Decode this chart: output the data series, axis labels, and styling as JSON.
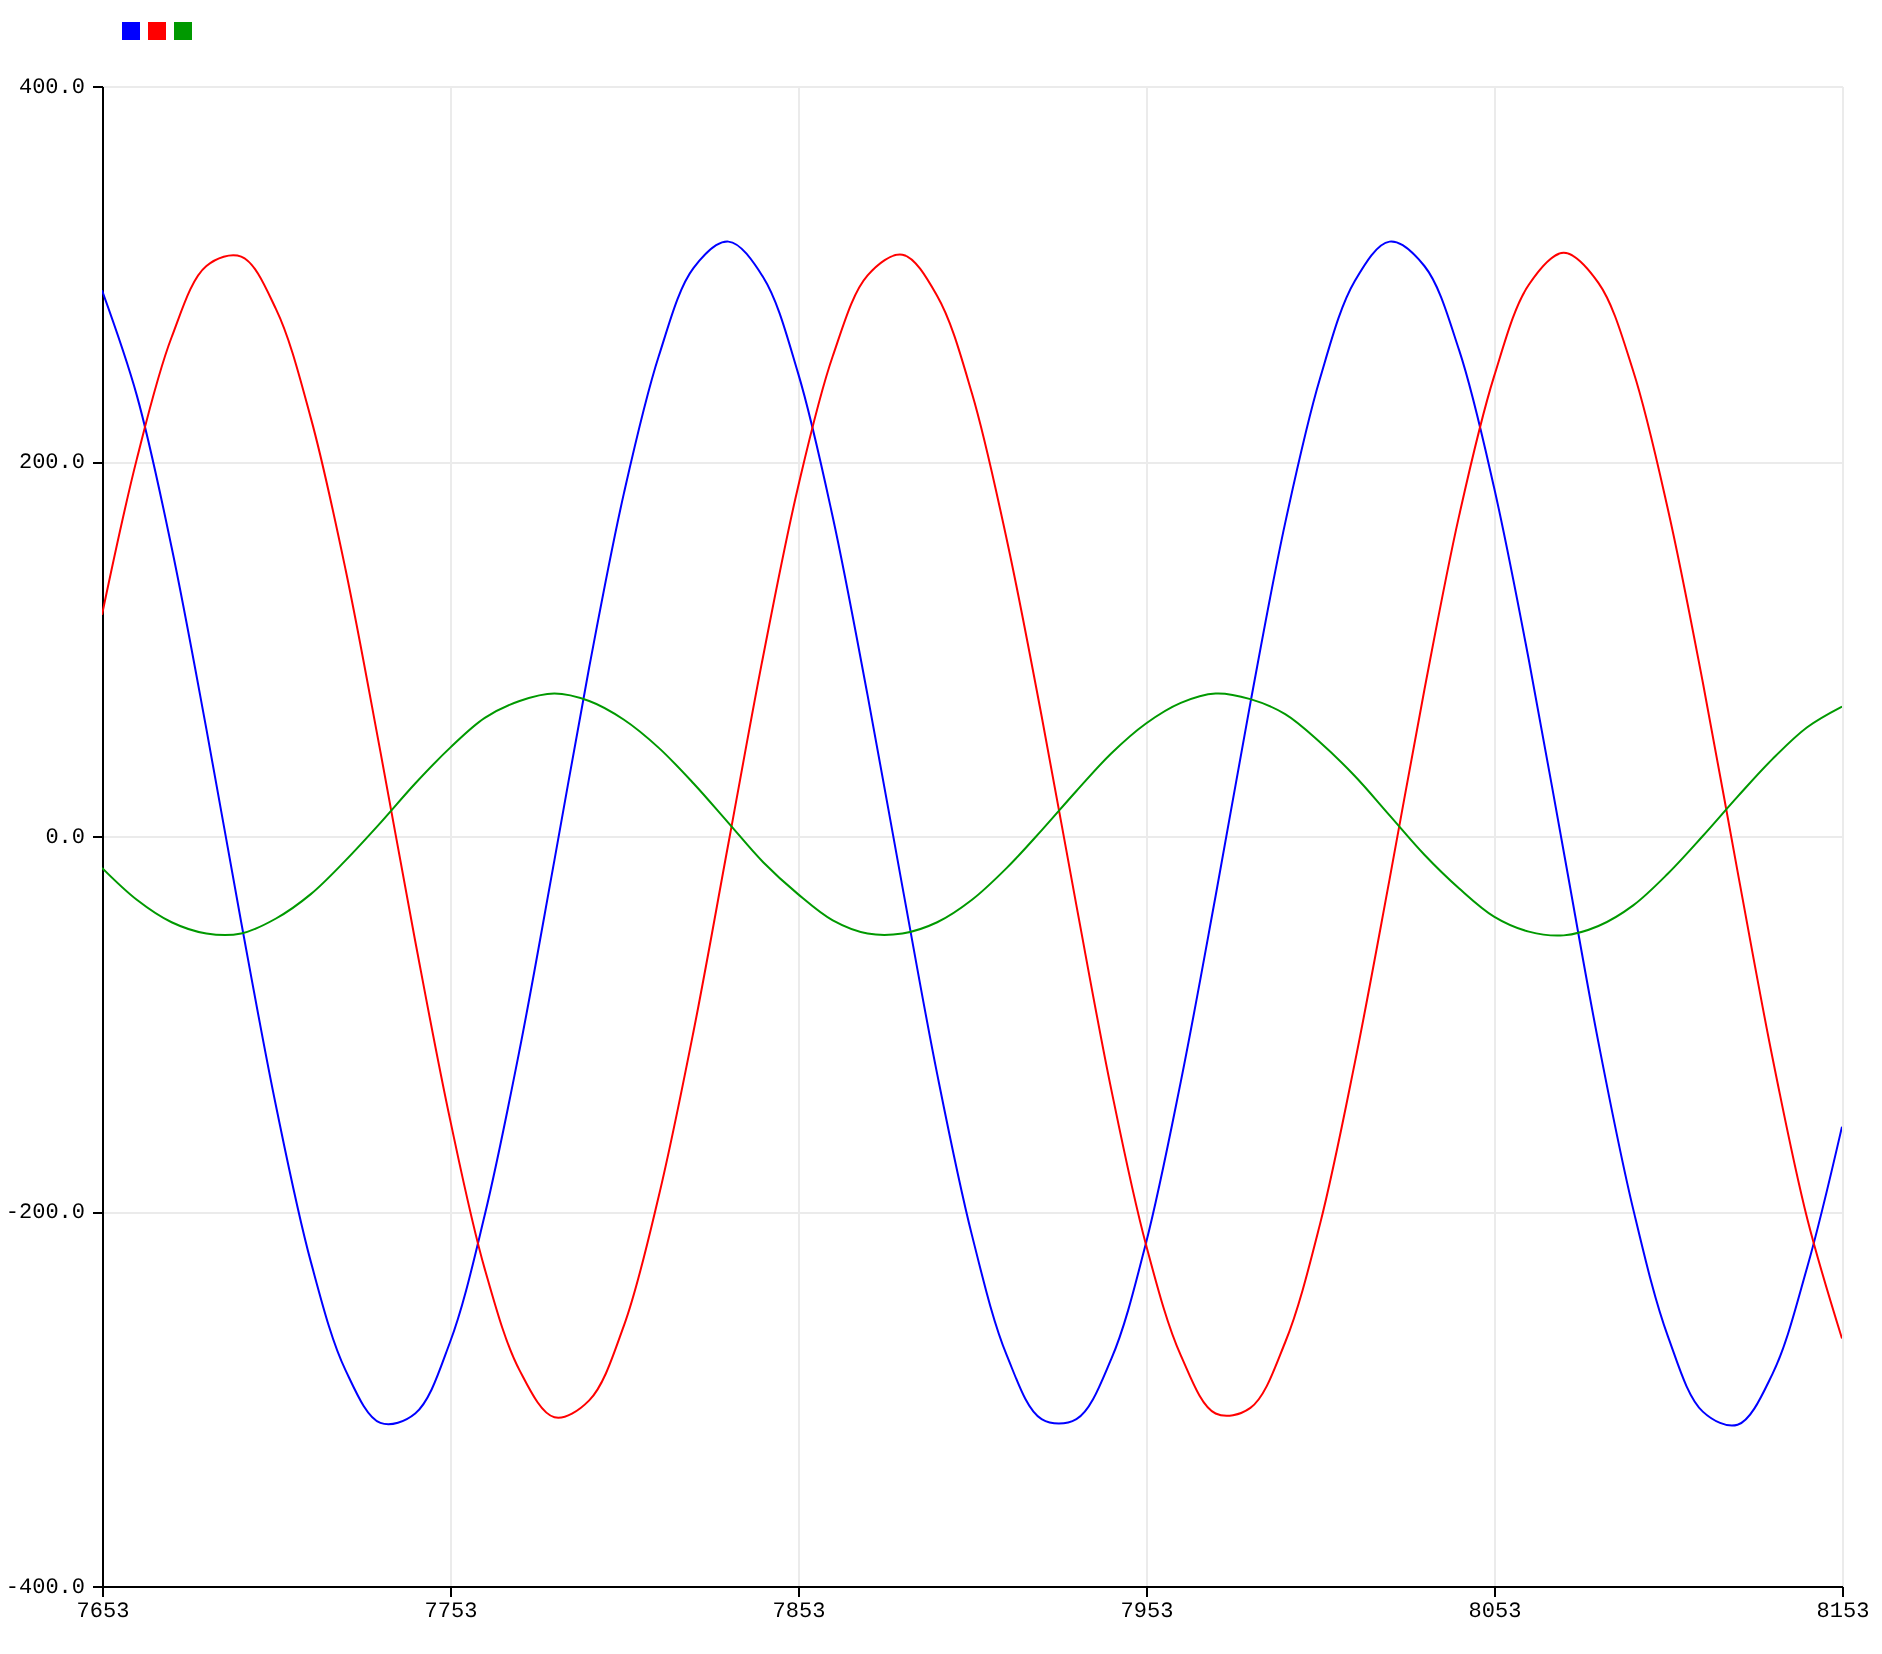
{
  "chart_data": {
    "type": "line",
    "x": [
      7653,
      7663,
      7673,
      7683,
      7693,
      7703,
      7713,
      7723,
      7733,
      7743,
      7753,
      7763,
      7773,
      7783,
      7793,
      7803,
      7813,
      7823,
      7833,
      7843,
      7853,
      7863,
      7873,
      7883,
      7893,
      7903,
      7913,
      7923,
      7933,
      7943,
      7953,
      7963,
      7973,
      7983,
      7993,
      8003,
      8013,
      8023,
      8033,
      8043,
      8053,
      8063,
      8073,
      8083,
      8093,
      8103,
      8113,
      8123,
      8133,
      8143,
      8153
    ],
    "series": [
      {
        "color": "#0000ff",
        "values": [
          291,
          235,
          154,
          57,
          -46,
          -144,
          -227,
          -285,
          -313,
          -308,
          -270,
          -202,
          -114,
          -13,
          90,
          183,
          256,
          303,
          317,
          298,
          247,
          170,
          75,
          -27,
          -127,
          -213,
          -277,
          -311,
          -311,
          -279,
          -217,
          -131,
          -32,
          71,
          167,
          244,
          296,
          317,
          304,
          259,
          186,
          94,
          -8,
          -110,
          -199,
          -267,
          -307,
          -314,
          -287,
          -230,
          -155
        ]
      },
      {
        "color": "#ff0000",
        "values": [
          118,
          201,
          266,
          304,
          309,
          281,
          223,
          142,
          45,
          -56,
          -151,
          -231,
          -285,
          -310,
          -301,
          -261,
          -192,
          -104,
          -4,
          96,
          186,
          256,
          299,
          310,
          288,
          236,
          158,
          64,
          -37,
          -135,
          -218,
          -277,
          -308,
          -305,
          -270,
          -207,
          -121,
          -23,
          78,
          171,
          245,
          294,
          311,
          295,
          248,
          174,
          82,
          -19,
          -118,
          -204,
          -268
        ]
      },
      {
        "color": "#009900",
        "values": [
          -17,
          -34,
          -46,
          -52,
          -52,
          -44,
          -31,
          -13,
          7,
          28,
          47,
          63,
          72,
          76,
          72,
          62,
          47,
          28,
          7,
          -14,
          -31,
          -45,
          -52,
          -52,
          -46,
          -34,
          -17,
          3,
          24,
          44,
          60,
          71,
          76,
          73,
          65,
          50,
          32,
          11,
          -10,
          -28,
          -43,
          -51,
          -53,
          -48,
          -37,
          -20,
          0,
          21,
          41,
          58,
          69
        ]
      }
    ],
    "xlim": [
      7653,
      8153
    ],
    "xticks": [
      7653,
      7753,
      7853,
      7953,
      8053,
      8153
    ],
    "ylim": [
      -400,
      400
    ],
    "yticks": [
      {
        "value": 400,
        "label": "400.0"
      },
      {
        "value": 200,
        "label": "200.0"
      },
      {
        "value": 0,
        "label": "0.0"
      },
      {
        "value": -200,
        "label": "-200.0"
      },
      {
        "value": -400,
        "label": "-400.0"
      }
    ],
    "grid": true
  }
}
